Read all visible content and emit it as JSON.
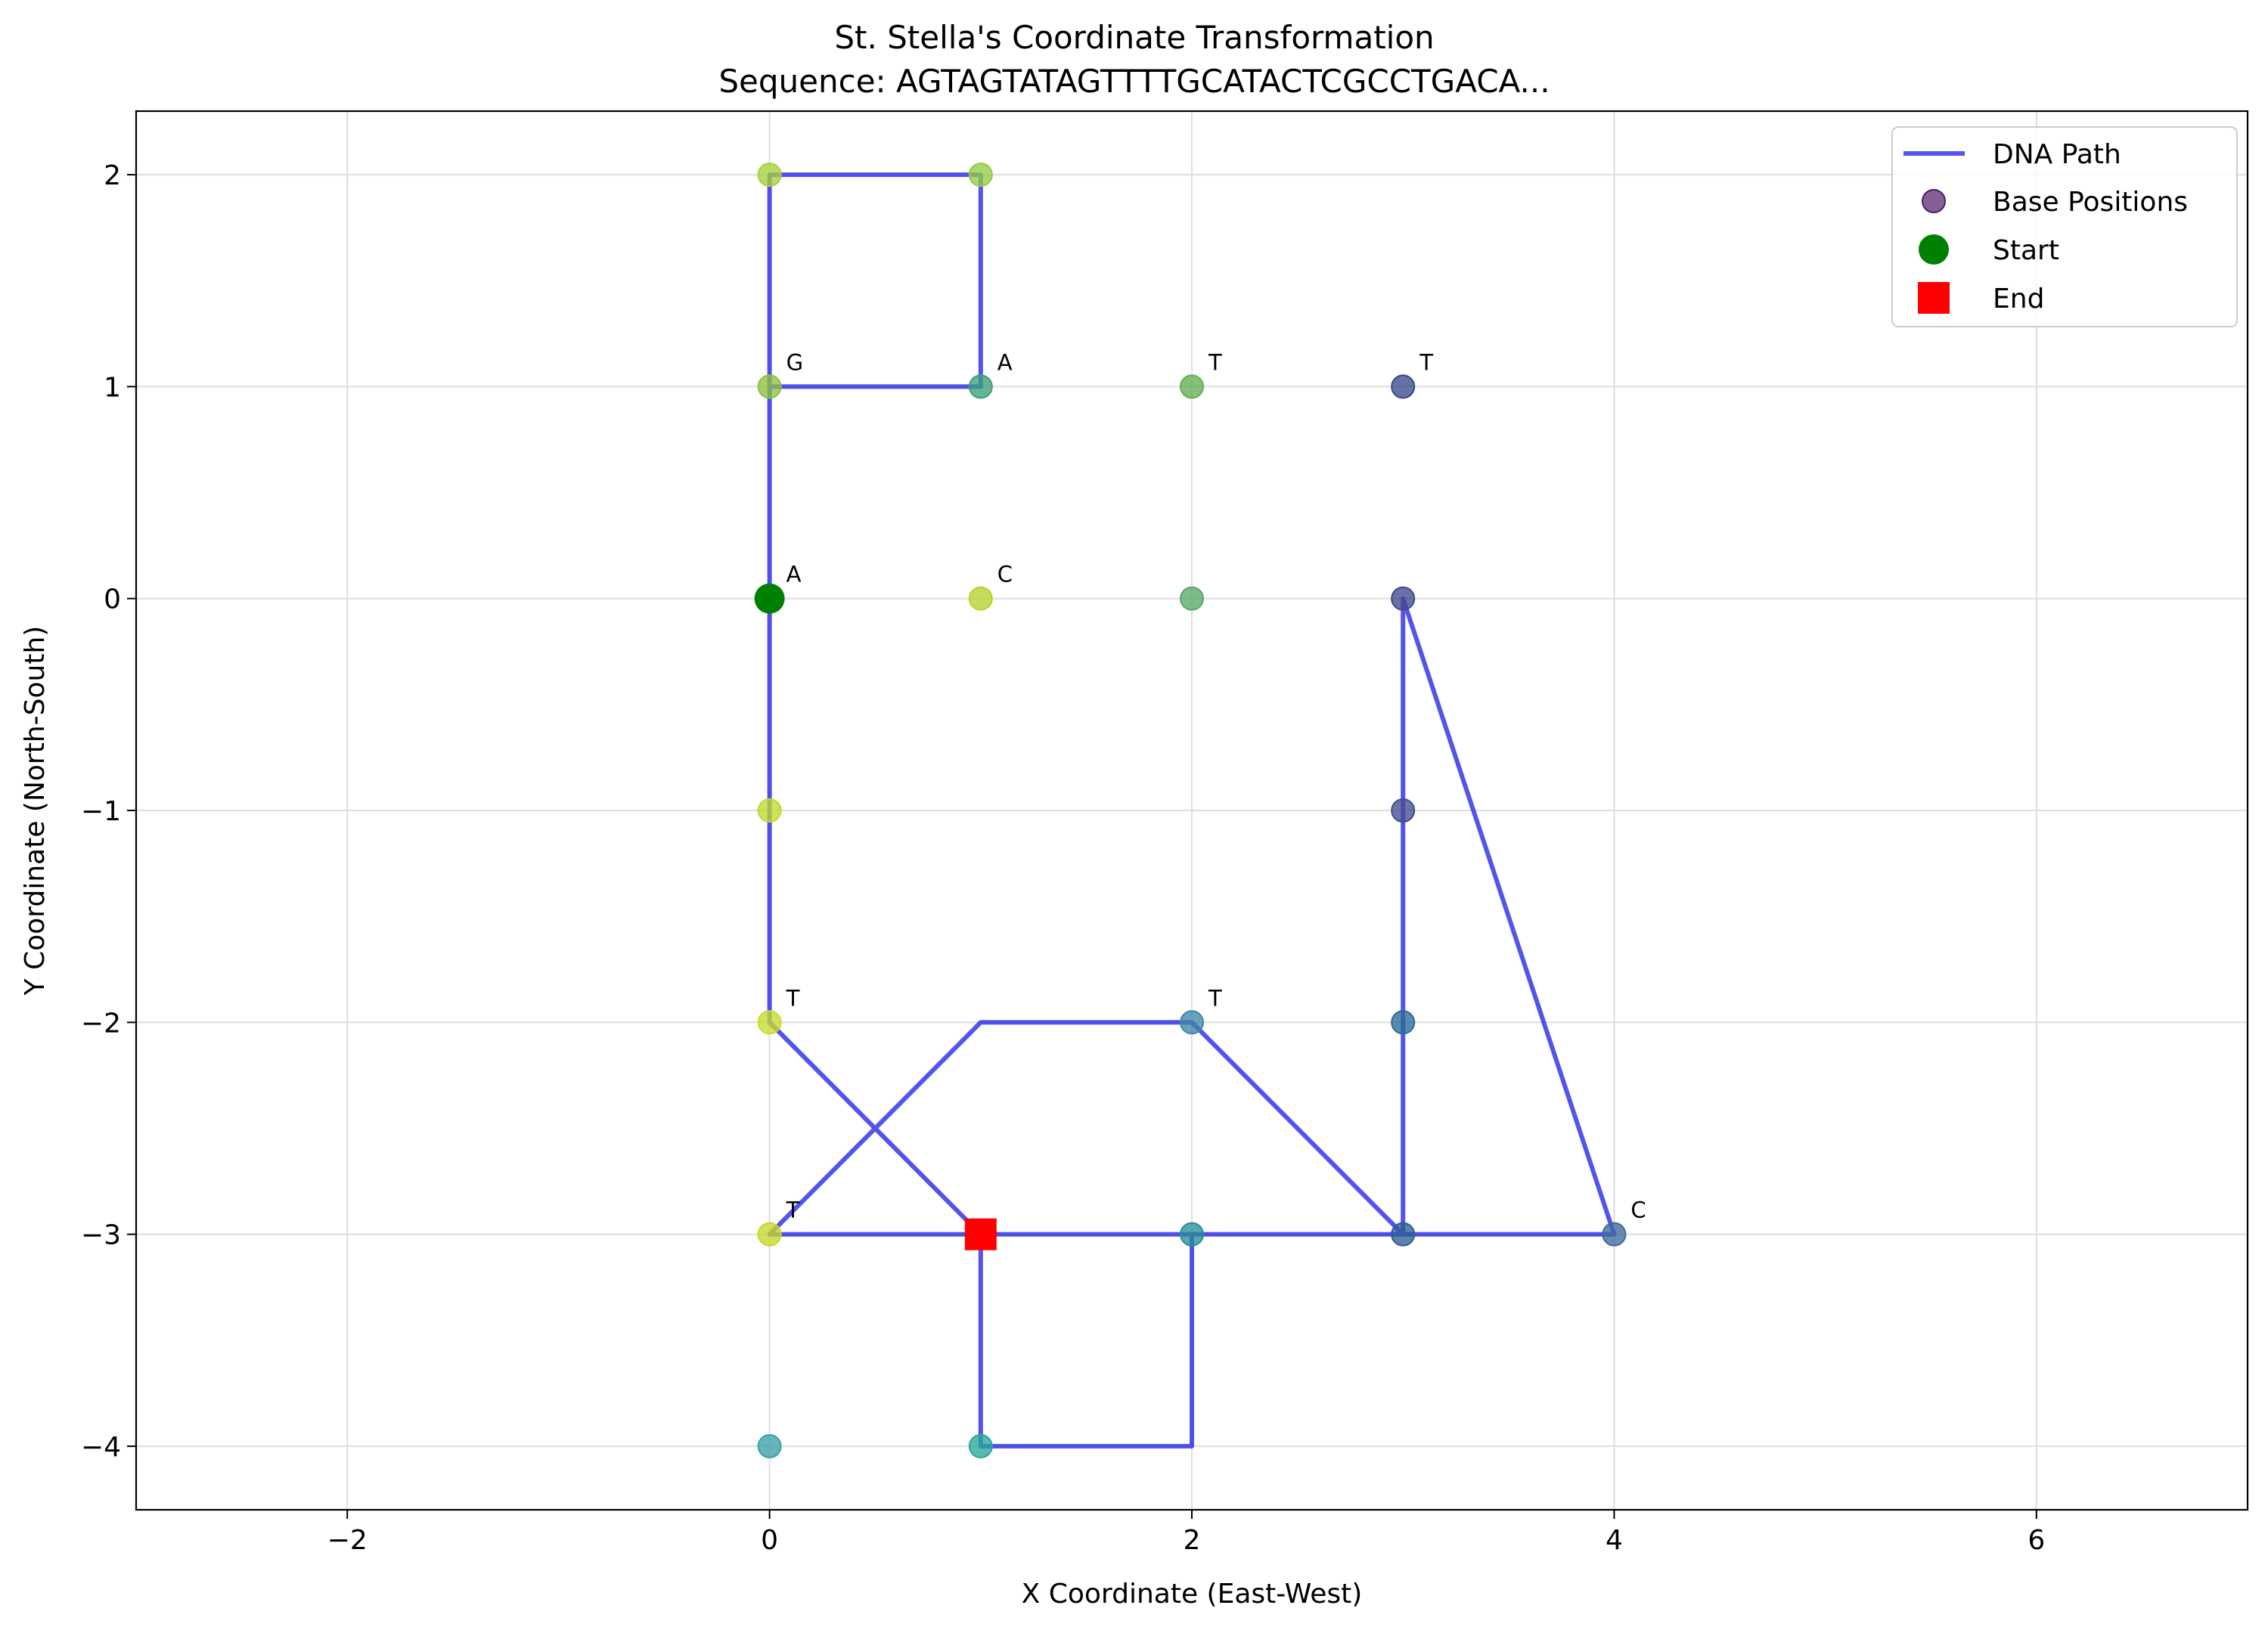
{
  "chart_data": {
    "type": "line",
    "title": "St. Stella's Coordinate Transformation",
    "subtitle": "Sequence: AGTAGTATAGTTTTGCATACTCGCCTGACA...",
    "xlabel": "X Coordinate (East-West)",
    "ylabel": "Y Coordinate (North-South)",
    "xlim": [
      -3,
      7
    ],
    "ylim": [
      -4.3,
      2.3
    ],
    "xticks": [
      -2,
      0,
      2,
      4,
      6
    ],
    "xtick_labels": [
      "−2",
      "0",
      "2",
      "4",
      "6"
    ],
    "yticks": [
      2,
      1,
      0,
      -1,
      -2,
      -3,
      -4
    ],
    "ytick_labels": [
      "2",
      "1",
      "0",
      "−1",
      "−2",
      "−3",
      "−4"
    ],
    "grid": true,
    "legend_position": "top-right",
    "legend": [
      {
        "label": "DNA Path",
        "marker": "line",
        "color": "#1a1ae8"
      },
      {
        "label": "Base Positions",
        "marker": "circle",
        "color": "#5b2a78"
      },
      {
        "label": "Start",
        "marker": "circle",
        "color": "#008000"
      },
      {
        "label": "End",
        "marker": "square",
        "color": "#ff0000"
      }
    ],
    "path": {
      "name": "DNA Path",
      "color": "#1a1ae8",
      "x": [
        0,
        0,
        0,
        1,
        1,
        0,
        0,
        0,
        0,
        1,
        1,
        2,
        2,
        3,
        3,
        3,
        3,
        4,
        3,
        2,
        2,
        1,
        1,
        0,
        0,
        1,
        1,
        2,
        2,
        1,
        1
      ],
      "y": [
        0,
        1,
        2,
        2,
        1,
        1,
        0,
        -1,
        -2,
        -3,
        -4,
        -4,
        -3,
        -3,
        -2,
        -1,
        0,
        -3,
        -3,
        -2,
        -2,
        -2,
        -2,
        -3,
        -3,
        -3,
        -3,
        -3,
        -3,
        -3,
        -3
      ]
    },
    "base_positions": {
      "name": "Base Positions",
      "points": [
        {
          "x": 0,
          "y": 0,
          "color": "#7f7f7f"
        },
        {
          "x": 0,
          "y": 1,
          "color": "#8dc13f"
        },
        {
          "x": 0,
          "y": 2,
          "color": "#a6d13a"
        },
        {
          "x": 1,
          "y": 2,
          "color": "#94cc43"
        },
        {
          "x": 1,
          "y": 1,
          "color": "#3d9f7a"
        },
        {
          "x": 1,
          "y": 0,
          "color": "#b5d42c"
        },
        {
          "x": 2,
          "y": 0,
          "color": "#5aa86a"
        },
        {
          "x": 2,
          "y": 1,
          "color": "#62b04f"
        },
        {
          "x": 3,
          "y": 1,
          "color": "#3a4a8c"
        },
        {
          "x": 3,
          "y": 0,
          "color": "#3f4a8a"
        },
        {
          "x": 3,
          "y": -1,
          "color": "#434e8e"
        },
        {
          "x": 3,
          "y": -2,
          "color": "#2a6a9a"
        },
        {
          "x": 3,
          "y": -3,
          "color": "#2d5e96"
        },
        {
          "x": 4,
          "y": -3,
          "color": "#3f6a9c"
        },
        {
          "x": 2,
          "y": -2,
          "color": "#3f88a6"
        },
        {
          "x": 2,
          "y": -3,
          "color": "#2a8c9a"
        },
        {
          "x": 1,
          "y": -4,
          "color": "#2aa89a"
        },
        {
          "x": 0,
          "y": -4,
          "color": "#3aa0a8"
        },
        {
          "x": 0,
          "y": -3,
          "color": "#c6d82a"
        },
        {
          "x": 0,
          "y": -2,
          "color": "#c8dc2a"
        },
        {
          "x": 0,
          "y": -1,
          "color": "#c2da2c"
        },
        {
          "x": 1,
          "y": -3,
          "color": "#3a9a90"
        }
      ]
    },
    "start": {
      "name": "Start",
      "x": 0,
      "y": 0,
      "color": "#008000"
    },
    "end": {
      "name": "End",
      "x": 1,
      "y": -3,
      "color": "#ff0000"
    },
    "annotations": [
      {
        "x": 0,
        "y": 0,
        "text": "A"
      },
      {
        "x": 0,
        "y": 1,
        "text": "G"
      },
      {
        "x": 1,
        "y": 1,
        "text": "A"
      },
      {
        "x": 1,
        "y": 0,
        "text": "C"
      },
      {
        "x": 2,
        "y": 1,
        "text": "T"
      },
      {
        "x": 3,
        "y": 1,
        "text": "T"
      },
      {
        "x": 0,
        "y": -2,
        "text": "T"
      },
      {
        "x": 0,
        "y": -3,
        "text": "T"
      },
      {
        "x": 2,
        "y": -2,
        "text": "T"
      },
      {
        "x": 4,
        "y": -3,
        "text": "C"
      }
    ]
  }
}
